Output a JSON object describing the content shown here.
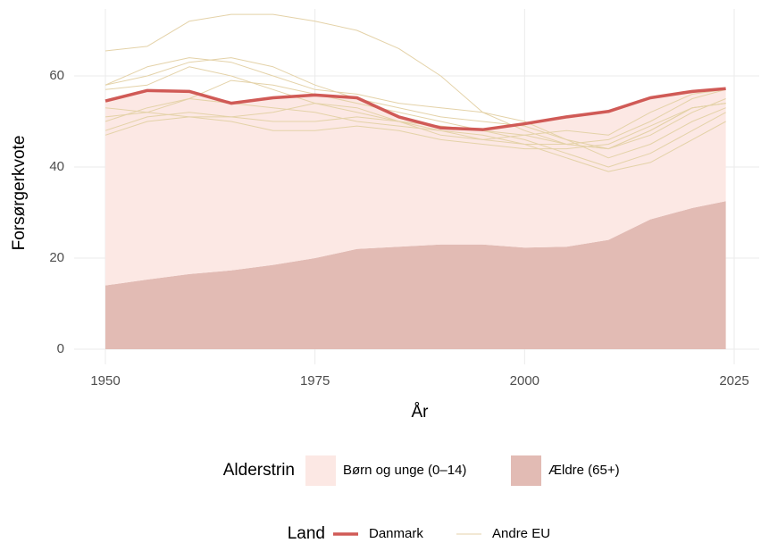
{
  "chart_data": {
    "type": "area-line",
    "x_label": "År",
    "y_label": "Forsørgerkvote",
    "x": [
      1950,
      1955,
      1960,
      1965,
      1970,
      1975,
      1980,
      1985,
      1990,
      1995,
      2000,
      2005,
      2010,
      2015,
      2020,
      2024
    ],
    "xlim": [
      1950,
      2025
    ],
    "xticks": [
      1950,
      1975,
      2000,
      2025
    ],
    "ylim": [
      0,
      60
    ],
    "yticks": [
      0,
      20,
      40,
      60
    ],
    "grid": true,
    "area_legend_title": "Alderstrin",
    "areas": [
      {
        "name": "Ældre (65+)",
        "color": "#e2bbb4",
        "values": [
          14.0,
          15.3,
          16.5,
          17.3,
          18.5,
          20.0,
          22.0,
          22.5,
          23.0,
          23.0,
          22.3,
          22.5,
          24.0,
          28.5,
          31.0,
          32.5
        ]
      },
      {
        "name": "Børn og unge (0–14)",
        "color": "#fce8e4",
        "values": [
          40.5,
          41.5,
          40.1,
          36.7,
          36.7,
          35.8,
          33.2,
          28.5,
          25.6,
          25.2,
          27.2,
          28.5,
          28.2,
          26.7,
          25.6,
          24.7
        ]
      }
    ],
    "line_legend_title": "Land",
    "lines": [
      {
        "name": "Danmark",
        "color": "#d05a56",
        "width": 3.5,
        "values": [
          [
            54.5,
            56.8,
            56.6,
            54.0,
            55.2,
            55.8,
            55.2,
            51.0,
            48.6,
            48.2,
            49.5,
            51.0,
            52.2,
            55.2,
            56.6,
            57.2
          ]
        ]
      },
      {
        "name": "Andre EU",
        "color": "#e4d2a8",
        "width": 1,
        "values": [
          [
            65.5,
            66.5,
            72,
            73.5,
            73.5,
            72,
            70,
            66,
            60,
            52,
            48,
            45,
            44,
            48,
            53,
            54
          ],
          [
            58,
            62,
            64,
            63,
            60,
            57,
            56,
            54,
            53,
            52,
            50,
            46,
            44,
            47,
            52,
            55
          ],
          [
            48,
            51,
            52,
            51,
            50,
            50,
            51,
            50,
            48,
            46,
            45,
            45,
            46,
            50,
            55,
            57
          ],
          [
            53,
            52,
            51,
            51,
            52,
            54,
            53,
            50,
            47,
            46,
            47,
            48,
            47,
            52,
            56,
            57
          ],
          [
            50,
            53,
            55,
            59,
            58,
            56,
            54,
            52,
            50,
            48,
            46,
            43,
            40,
            43,
            48,
            52
          ],
          [
            57,
            58,
            62,
            60,
            57,
            54,
            52,
            50,
            49,
            48,
            47,
            45,
            44,
            48,
            53,
            54
          ],
          [
            47,
            50,
            51,
            50,
            48,
            48,
            49,
            48,
            46,
            45,
            44,
            44,
            45,
            49,
            53,
            54
          ],
          [
            58,
            60,
            63,
            64,
            62,
            58,
            55,
            53,
            51,
            50,
            49,
            46,
            42,
            45,
            50,
            53
          ],
          [
            51,
            52,
            55,
            54,
            53,
            52,
            50,
            49,
            48,
            47,
            45,
            42,
            39,
            41,
            46,
            50
          ]
        ]
      }
    ]
  }
}
